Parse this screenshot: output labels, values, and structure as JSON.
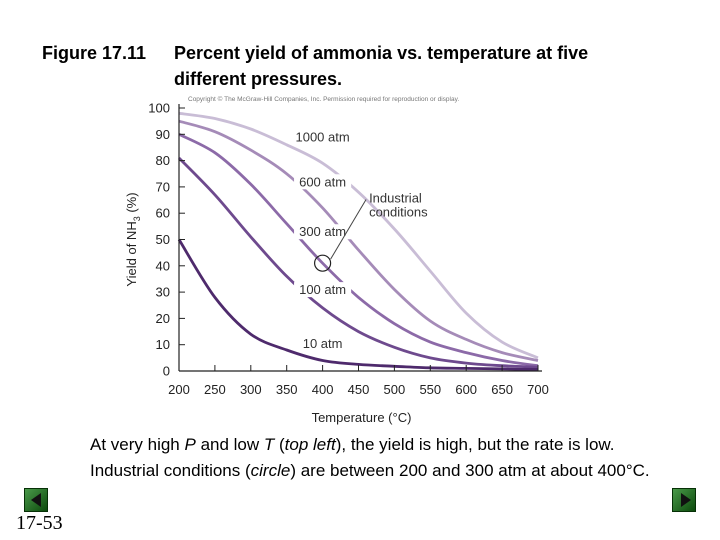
{
  "figure": {
    "label": "Figure 17.11",
    "caption": "Percent yield of ammonia vs. temperature at five different pressures."
  },
  "copyright": "Copyright © The McGraw-Hill Companies, Inc. Permission required for reproduction or display.",
  "caption": {
    "p1": "At very high ",
    "P": "P",
    "p2": " and low ",
    "T": "T",
    "p3": " (",
    "topleft": "top left",
    "p4": "), the yield is high, but the rate is low. Industrial conditions (",
    "circle": "circle",
    "p5": ") are between 200 and 300 atm at about 400°C."
  },
  "slide_number": "17-53",
  "chart_data": {
    "type": "line",
    "title": "",
    "xlabel": "Temperature (°C)",
    "ylabel": "Yield of NH3 (%)",
    "xlim": [
      200,
      700
    ],
    "ylim": [
      0,
      100
    ],
    "xticks": [
      200,
      250,
      300,
      350,
      400,
      450,
      500,
      550,
      600,
      650,
      700
    ],
    "yticks": [
      0,
      10,
      20,
      30,
      40,
      50,
      60,
      70,
      80,
      90,
      100
    ],
    "grid": false,
    "series": [
      {
        "name": "1000 atm",
        "color": "#c9bdd6",
        "x": [
          200,
          250,
          300,
          350,
          400,
          450,
          500,
          550,
          600,
          650,
          700
        ],
        "y": [
          98,
          96,
          92,
          86,
          79,
          68,
          54,
          38,
          22,
          11,
          5
        ]
      },
      {
        "name": "600 atm",
        "color": "#a58bb8",
        "x": [
          200,
          250,
          300,
          350,
          400,
          450,
          500,
          550,
          600,
          650,
          700
        ],
        "y": [
          95,
          91,
          84,
          75,
          62,
          46,
          31,
          19,
          12,
          7,
          4
        ]
      },
      {
        "name": "300 atm",
        "color": "#8c6aa8",
        "x": [
          200,
          250,
          300,
          350,
          400,
          450,
          500,
          550,
          600,
          650,
          700
        ],
        "y": [
          90,
          83,
          71,
          56,
          41,
          28,
          18,
          11,
          7,
          4,
          2
        ]
      },
      {
        "name": "100 atm",
        "color": "#6e4a8e",
        "x": [
          200,
          250,
          300,
          350,
          400,
          450,
          500,
          550,
          600,
          650,
          700
        ],
        "y": [
          81,
          67,
          51,
          36,
          24,
          15,
          9,
          5,
          3,
          2,
          1.5
        ]
      },
      {
        "name": "10 atm",
        "color": "#4e2a6c",
        "x": [
          200,
          250,
          300,
          350,
          400,
          450,
          500,
          550,
          600,
          650,
          700
        ],
        "y": [
          50,
          28,
          14,
          8,
          4,
          2.5,
          1.8,
          1.2,
          1,
          0.8,
          0.6
        ]
      }
    ],
    "annotations": [
      {
        "text": "1000 atm",
        "x": 400,
        "y": 88
      },
      {
        "text": "600 atm",
        "x": 400,
        "y": 71
      },
      {
        "text": "300 atm",
        "x": 400,
        "y": 52
      },
      {
        "text": "100 atm",
        "x": 400,
        "y": 30
      },
      {
        "text": "10 atm",
        "x": 400,
        "y": 9.5
      }
    ],
    "circle": {
      "x": 400,
      "y": 41
    },
    "callout": {
      "lines": [
        "Industrial",
        "conditions"
      ],
      "x": 565,
      "y": 58
    }
  }
}
